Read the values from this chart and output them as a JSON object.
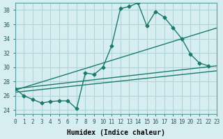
{
  "xlabel": "Humidex (Indice chaleur)",
  "ylabel": "",
  "xlim": [
    0,
    23
  ],
  "ylim": [
    23.5,
    39
  ],
  "xticks": [
    0,
    1,
    2,
    3,
    4,
    5,
    6,
    7,
    8,
    9,
    10,
    11,
    12,
    13,
    14,
    15,
    16,
    17,
    18,
    19,
    20,
    21,
    22,
    23
  ],
  "yticks": [
    24,
    26,
    28,
    30,
    32,
    34,
    36,
    38
  ],
  "bg_color": "#d6eef0",
  "grid_color": "#b0d4d8",
  "line_color": "#1a7a6e",
  "series_zigzag_x": [
    0,
    1,
    2,
    3,
    4,
    5,
    6,
    7,
    8,
    9,
    10,
    11,
    12,
    13,
    14,
    15,
    16,
    17,
    18,
    19,
    20,
    21,
    22
  ],
  "series_zigzag_y": [
    27.0,
    26.0,
    25.5,
    25.0,
    25.2,
    25.3,
    25.3,
    24.2,
    29.2,
    29.0,
    30.0,
    33.0,
    38.2,
    38.5,
    39.0,
    35.8,
    37.8,
    37.0,
    35.5,
    34.0,
    31.8,
    30.6,
    30.2
  ],
  "series_line1_x": [
    0,
    23
  ],
  "series_line1_y": [
    27.0,
    30.2
  ],
  "series_line2_x": [
    0,
    23
  ],
  "series_line2_y": [
    26.8,
    35.5
  ],
  "series_line3_x": [
    0,
    23
  ],
  "series_line3_y": [
    26.5,
    29.5
  ]
}
